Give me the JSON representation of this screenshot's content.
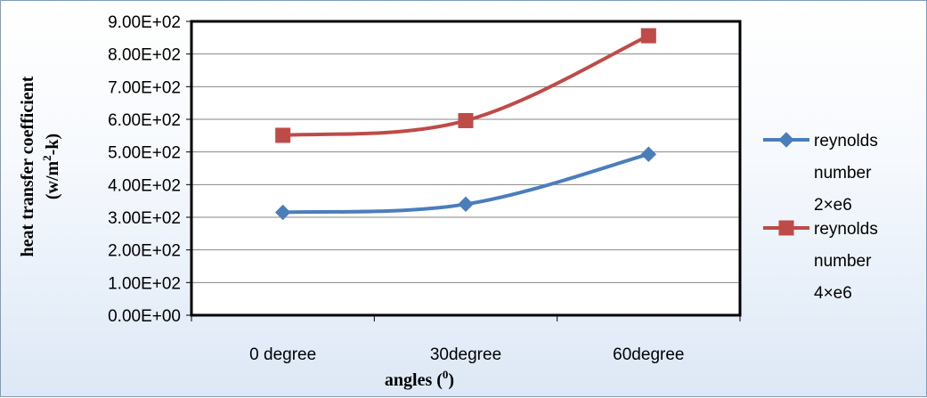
{
  "chart_data": {
    "type": "line",
    "categories": [
      "0 degree",
      "30degree",
      "60degree"
    ],
    "series": [
      {
        "name": "reynolds number 2×e6",
        "name_lines": [
          "reynolds",
          "number",
          "2×e6"
        ],
        "color": "#4a7ebb",
        "marker": "diamond",
        "values": [
          315,
          340,
          493
        ]
      },
      {
        "name": "reynolds number 4×e6",
        "name_lines": [
          "reynolds",
          "number",
          "4×e6"
        ],
        "color": "#be4b48",
        "marker": "square",
        "values": [
          551,
          596,
          856
        ]
      }
    ],
    "yticks": [
      0,
      100,
      200,
      300,
      400,
      500,
      600,
      700,
      800,
      900
    ],
    "ytick_labels": [
      "0.00E+00",
      "1.00E+02",
      "2.00E+02",
      "3.00E+02",
      "4.00E+02",
      "5.00E+02",
      "6.00E+02",
      "7.00E+02",
      "8.00E+02",
      "9.00E+02"
    ],
    "ylim": [
      0,
      900
    ],
    "xlabel": "angles (0)",
    "xlabel_main": "angles (",
    "xlabel_sup": "0",
    "xlabel_end": ")",
    "ylabel": "heat transfer coefficient (w/m2-k)",
    "ylabel_line1": "heat transfer coefficient",
    "ylabel_line2_a": "(w/m",
    "ylabel_line2_sup": "2",
    "ylabel_line2_b": "-k)",
    "grid": true,
    "legend_position": "right"
  }
}
